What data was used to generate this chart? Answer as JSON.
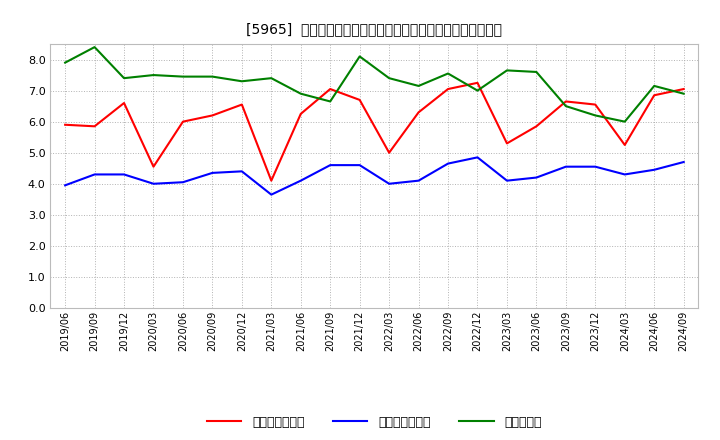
{
  "title": "[5965]  売上債権回転率、買入債務回転率、在庫回転率の推移",
  "x_labels": [
    "2019/06",
    "2019/09",
    "2019/12",
    "2020/03",
    "2020/06",
    "2020/09",
    "2020/12",
    "2021/03",
    "2021/06",
    "2021/09",
    "2021/12",
    "2022/03",
    "2022/06",
    "2022/09",
    "2022/12",
    "2023/03",
    "2023/06",
    "2023/09",
    "2023/12",
    "2024/03",
    "2024/06",
    "2024/09"
  ],
  "red_data": [
    5.9,
    5.85,
    6.6,
    4.55,
    6.0,
    6.2,
    6.55,
    4.1,
    6.25,
    7.05,
    6.7,
    5.0,
    6.3,
    7.05,
    7.25,
    5.3,
    5.85,
    6.65,
    6.55,
    5.25,
    6.85,
    7.05
  ],
  "blue_data": [
    3.95,
    4.3,
    4.3,
    4.0,
    4.05,
    4.35,
    4.4,
    3.65,
    4.1,
    4.6,
    4.6,
    4.0,
    4.1,
    4.65,
    4.85,
    4.1,
    4.2,
    4.55,
    4.55,
    4.3,
    4.45,
    4.7
  ],
  "green_data": [
    7.9,
    8.4,
    7.4,
    7.5,
    7.45,
    7.45,
    7.3,
    7.4,
    6.9,
    6.65,
    8.1,
    7.4,
    7.15,
    7.55,
    7.0,
    7.65,
    7.6,
    6.5,
    6.2,
    6.0,
    7.15,
    6.9
  ],
  "red_color": "#ff0000",
  "blue_color": "#0000ff",
  "green_color": "#008000",
  "ylim": [
    0.0,
    8.5
  ],
  "yticks": [
    0.0,
    1.0,
    2.0,
    3.0,
    4.0,
    5.0,
    6.0,
    7.0,
    8.0
  ],
  "legend_labels": [
    "売上債権回転率",
    "買入債務回転率",
    "在庫回転率"
  ],
  "bg_color": "#ffffff",
  "grid_color": "#aaaaaa",
  "title_fontsize": 11
}
